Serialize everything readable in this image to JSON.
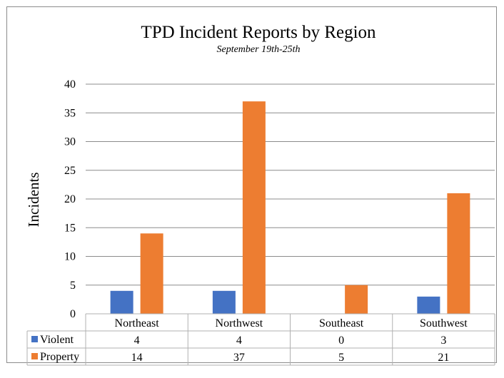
{
  "chart_data": {
    "type": "bar",
    "title": "TPD Incident Reports by Region",
    "subtitle": "September 19th-25th",
    "xlabel": "",
    "ylabel": "Incidents",
    "ylim": [
      0,
      40
    ],
    "yticks": [
      0,
      5,
      10,
      15,
      20,
      25,
      30,
      35,
      40
    ],
    "grid": true,
    "categories": [
      "Northeast",
      "Northwest",
      "Southeast",
      "Southwest"
    ],
    "series": [
      {
        "name": "Violent",
        "color": "#4472C4",
        "values": [
          4,
          4,
          0,
          3
        ]
      },
      {
        "name": "Property",
        "color": "#ED7D31",
        "values": [
          14,
          37,
          5,
          21
        ]
      }
    ],
    "data_table": true
  }
}
